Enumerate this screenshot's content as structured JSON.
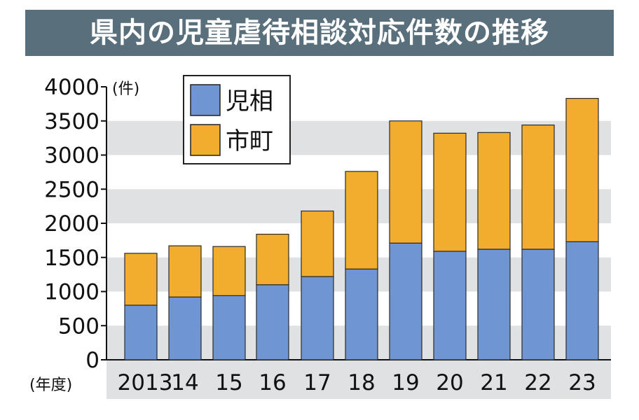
{
  "chart_data": {
    "type": "bar",
    "stacked": true,
    "title": "県内の児童虐待相談対応件数の推移",
    "y_unit_label": "(件)",
    "x_unit_label": "(年度)",
    "categories": [
      "2013",
      "14",
      "15",
      "16",
      "17",
      "18",
      "19",
      "20",
      "21",
      "22",
      "23"
    ],
    "series": [
      {
        "name": "児相",
        "color": "#6f96d2",
        "values": [
          800,
          920,
          940,
          1100,
          1220,
          1330,
          1710,
          1590,
          1620,
          1620,
          1730
        ]
      },
      {
        "name": "市町",
        "color": "#f2ac2e",
        "values": [
          760,
          750,
          720,
          740,
          960,
          1430,
          1790,
          1730,
          1710,
          1820,
          2100
        ]
      }
    ],
    "ylim": [
      0,
      4000
    ],
    "yticks": [
      0,
      500,
      1000,
      1500,
      2000,
      2500,
      3000,
      3500,
      4000
    ],
    "grid": "alternating horizontal bands",
    "legend": "top-left"
  }
}
